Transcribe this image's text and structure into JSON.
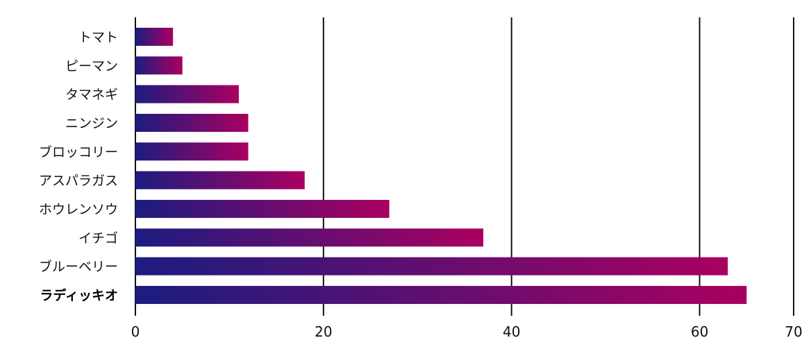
{
  "chart_data": {
    "type": "bar",
    "orientation": "horizontal",
    "categories": [
      "トマト",
      "ピーマン",
      "タマネギ",
      "ニンジン",
      "ブロッコリー",
      "アスパラガス",
      "ホウレンソウ",
      "イチゴ",
      "ブルーベリー",
      "ラディッキオ"
    ],
    "values": [
      4,
      5,
      11,
      12,
      12,
      18,
      27,
      37,
      63,
      65
    ],
    "highlight_category": "ラディッキオ",
    "xlim": [
      0,
      70
    ],
    "x_ticks": [
      0,
      20,
      40,
      60,
      70
    ],
    "grid": true,
    "title": "",
    "xlabel": "",
    "ylabel": "",
    "colors": {
      "bar_gradient_start": "#1c1c80",
      "bar_gradient_end": "#aa0060",
      "gridline": "#111111",
      "text": "#111111"
    }
  }
}
